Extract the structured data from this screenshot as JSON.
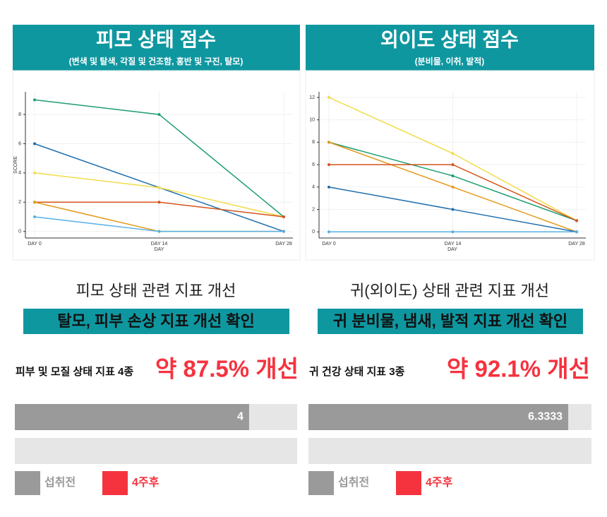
{
  "panels": [
    {
      "title": "피모 상태 점수",
      "subtitle": "(변색 및 탈색, 각질 및 건조함, 홍반 및 구진, 탈모)",
      "caption": "피모 상태 관련 지표 개선",
      "highlight": "탈모, 피부 손상 지표 개선 확인",
      "metric_label": "피부 및 모질 상태 지표 4종",
      "metric_value": "약 87.5% 개선"
    },
    {
      "title": "외이도 상태 점수",
      "subtitle": "(분비물, 이취, 발적)",
      "caption": "귀(외이도) 상태 관련 지표 개선",
      "highlight": "귀 분비물, 냄새, 발적 지표 개선 확인",
      "metric_label": "귀 건강 상태 지표 3종",
      "metric_value": "약 92.1% 개선"
    }
  ],
  "chart_data": [
    {
      "type": "line",
      "ylabel": "SCORE",
      "xlabel": "DAY",
      "categories": [
        "DAY 0",
        "DAY 14",
        "DAY 28"
      ],
      "ylim": [
        -0.45,
        9.55
      ],
      "yticks": [
        0,
        2,
        4,
        6,
        8
      ],
      "grid": true,
      "series": [
        {
          "color": "#1f9e6e",
          "values": [
            9,
            8,
            1
          ]
        },
        {
          "color": "#1f6fae",
          "values": [
            6,
            3,
            0
          ]
        },
        {
          "color": "#f2dc4a",
          "values": [
            4,
            3,
            1
          ]
        },
        {
          "color": "#d4541a",
          "values": [
            2,
            2,
            1
          ]
        },
        {
          "color": "#e39a1a",
          "values": [
            2,
            0,
            0
          ]
        },
        {
          "color": "#56b0e6",
          "values": [
            1,
            0,
            0
          ]
        }
      ]
    },
    {
      "type": "line",
      "xlabel": "DAY",
      "categories": [
        "DAY 0",
        "DAY 14",
        "DAY 28"
      ],
      "ylim": [
        -0.55,
        12.5
      ],
      "yticks": [
        0,
        2,
        4,
        6,
        8,
        10,
        12
      ],
      "grid": true,
      "series": [
        {
          "color": "#f2dc4a",
          "values": [
            12,
            7,
            1
          ]
        },
        {
          "color": "#1f9e6e",
          "values": [
            8,
            5,
            1
          ]
        },
        {
          "color": "#e39a1a",
          "values": [
            8,
            4,
            0
          ]
        },
        {
          "color": "#d4541a",
          "values": [
            6,
            6,
            1
          ]
        },
        {
          "color": "#1f6fae",
          "values": [
            4,
            2,
            0
          ]
        },
        {
          "color": "#56b0e6",
          "values": [
            0,
            0,
            0
          ]
        }
      ]
    },
    {
      "type": "bar",
      "orientation": "horizontal",
      "xlim": [
        0,
        4.82
      ],
      "legend": "bottom",
      "series": [
        {
          "name": "섭취전",
          "color": "#9a9a9a",
          "values": [
            4
          ]
        },
        {
          "name": "4주후",
          "color": "#f5333f",
          "values": [
            0
          ]
        }
      ]
    },
    {
      "type": "bar",
      "orientation": "horizontal",
      "xlim": [
        0,
        6.9
      ],
      "legend": "bottom",
      "series": [
        {
          "name": "섭취전",
          "color": "#9a9a9a",
          "values": [
            6.3333
          ]
        },
        {
          "name": "4주후",
          "color": "#f5333f",
          "values": [
            0
          ]
        }
      ]
    }
  ]
}
